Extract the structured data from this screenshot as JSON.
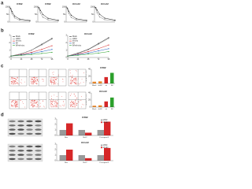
{
  "figure": {
    "panel_labels": [
      "a",
      "b",
      "c",
      "d"
    ]
  },
  "chart_data": [
    {
      "type": "line",
      "title": "K562",
      "x": [
        0,
        1,
        2,
        4,
        8,
        16
      ],
      "xlim": [
        0,
        16
      ],
      "ylim": [
        0,
        110
      ],
      "yticks": [
        0,
        50,
        100
      ],
      "series": [
        {
          "name": "shNC",
          "color": "#222222",
          "values": [
            100,
            92,
            70,
            40,
            20,
            10
          ]
        },
        {
          "name": "sh-circ",
          "color": "#888888",
          "values": [
            100,
            85,
            55,
            28,
            12,
            6
          ]
        }
      ]
    },
    {
      "type": "line",
      "title": "K562",
      "x": [
        0,
        1,
        2,
        4,
        8,
        16
      ],
      "xlim": [
        0,
        16
      ],
      "ylim": [
        0,
        110
      ],
      "yticks": [
        0,
        50,
        100
      ],
      "series": [
        {
          "name": "shNC",
          "color": "#222222",
          "values": [
            100,
            95,
            78,
            50,
            25,
            12
          ]
        },
        {
          "name": "sh-circ",
          "color": "#888888",
          "values": [
            100,
            88,
            60,
            32,
            15,
            7
          ]
        }
      ]
    },
    {
      "type": "line",
      "title": "KCL22",
      "x": [
        0,
        1,
        2,
        4,
        8,
        16
      ],
      "xlim": [
        0,
        16
      ],
      "ylim": [
        0,
        110
      ],
      "yticks": [
        0,
        50,
        100
      ],
      "series": [
        {
          "name": "shNC",
          "color": "#222222",
          "values": [
            100,
            93,
            72,
            45,
            22,
            11
          ]
        },
        {
          "name": "sh-circ",
          "color": "#888888",
          "values": [
            100,
            86,
            58,
            30,
            14,
            6
          ]
        }
      ]
    },
    {
      "type": "line",
      "title": "KCL22",
      "x": [
        0,
        1,
        2,
        4,
        8,
        16
      ],
      "xlim": [
        0,
        16
      ],
      "ylim": [
        0,
        110
      ],
      "yticks": [
        0,
        50,
        100
      ],
      "series": [
        {
          "name": "shNC",
          "color": "#222222",
          "values": [
            100,
            96,
            80,
            52,
            26,
            13
          ]
        },
        {
          "name": "sh-circ",
          "color": "#888888",
          "values": [
            100,
            89,
            62,
            34,
            16,
            8
          ]
        }
      ]
    },
    {
      "type": "line",
      "title": "K562",
      "x": [
        0,
        24,
        48,
        72,
        96
      ],
      "xlim": [
        0,
        96
      ],
      "ylim": [
        0,
        3
      ],
      "yticks": [
        0,
        1,
        2,
        3
      ],
      "xticks": [
        0,
        24,
        48,
        72,
        96
      ],
      "legend": true,
      "series": [
        {
          "name": "Mock",
          "color": "#222222",
          "values": [
            0.2,
            0.5,
            1.0,
            1.8,
            2.6
          ]
        },
        {
          "name": "shNC",
          "color": "#888888",
          "values": [
            0.2,
            0.5,
            1.0,
            1.7,
            2.5
          ]
        },
        {
          "name": "sh-circ",
          "color": "#d62728",
          "values": [
            0.2,
            0.4,
            0.7,
            1.1,
            1.6
          ]
        },
        {
          "name": "IM",
          "color": "#1f5fbf",
          "values": [
            0.2,
            0.35,
            0.55,
            0.8,
            1.1
          ]
        },
        {
          "name": "IM+sh-circ",
          "color": "#2ca02c",
          "values": [
            0.2,
            0.3,
            0.4,
            0.55,
            0.7
          ]
        }
      ]
    },
    {
      "type": "line",
      "title": "KCL22",
      "x": [
        0,
        24,
        48,
        72,
        96
      ],
      "xlim": [
        0,
        96
      ],
      "ylim": [
        0,
        3
      ],
      "yticks": [
        0,
        1,
        2,
        3
      ],
      "xticks": [
        0,
        24,
        48,
        72,
        96
      ],
      "legend": true,
      "series": [
        {
          "name": "Mock",
          "color": "#222222",
          "values": [
            0.2,
            0.6,
            1.1,
            1.9,
            2.7
          ]
        },
        {
          "name": "shNC",
          "color": "#888888",
          "values": [
            0.2,
            0.55,
            1.05,
            1.8,
            2.6
          ]
        },
        {
          "name": "sh-circ",
          "color": "#d62728",
          "values": [
            0.2,
            0.45,
            0.8,
            1.2,
            1.7
          ]
        },
        {
          "name": "IM",
          "color": "#1f5fbf",
          "values": [
            0.2,
            0.4,
            0.6,
            0.9,
            1.2
          ]
        },
        {
          "name": "IM+sh-circ",
          "color": "#2ca02c",
          "values": [
            0.2,
            0.3,
            0.45,
            0.6,
            0.8
          ]
        }
      ]
    },
    {
      "type": "bar",
      "title": "K562",
      "y_label": "Apoptosis (%)",
      "categories": [
        "Mock",
        "shNC",
        "sh",
        "IM"
      ],
      "values": [
        5,
        6,
        18,
        30
      ],
      "colors": [
        "#ef8a2a",
        "#ef8a2a",
        "#d62728",
        "#2ca02c"
      ],
      "ylim": [
        0,
        40
      ],
      "yticks": [
        0,
        20,
        40
      ]
    },
    {
      "type": "bar",
      "title": "KCL22",
      "y_label": "Apoptosis (%)",
      "categories": [
        "Mock",
        "shNC",
        "sh",
        "IM"
      ],
      "values": [
        4,
        5,
        16,
        27
      ],
      "colors": [
        "#ef8a2a",
        "#ef8a2a",
        "#d62728",
        "#2ca02c"
      ],
      "ylim": [
        0,
        40
      ],
      "yticks": [
        0,
        20,
        40
      ]
    },
    {
      "type": "bar",
      "title": "K562",
      "categories": [
        "Bax",
        "Bcl-2",
        "C-caspase3"
      ],
      "ylim": [
        0,
        3
      ],
      "yticks": [
        0,
        1,
        2,
        3
      ],
      "legend": true,
      "series": [
        {
          "name": "shNC",
          "color": "#999999",
          "values": [
            1.0,
            1.0,
            1.0
          ]
        },
        {
          "name": "sh-circ",
          "color": "#d62728",
          "values": [
            2.2,
            0.5,
            2.5
          ]
        }
      ]
    },
    {
      "type": "bar",
      "title": "KCL22",
      "categories": [
        "Bax",
        "Bcl-2",
        "C-caspase3"
      ],
      "ylim": [
        0,
        3
      ],
      "yticks": [
        0,
        1,
        2,
        3
      ],
      "legend": true,
      "series": [
        {
          "name": "shNC",
          "color": "#999999",
          "values": [
            1.0,
            1.0,
            1.0
          ]
        },
        {
          "name": "sh-circ",
          "color": "#d62728",
          "values": [
            2.0,
            0.45,
            2.3
          ]
        }
      ]
    }
  ]
}
